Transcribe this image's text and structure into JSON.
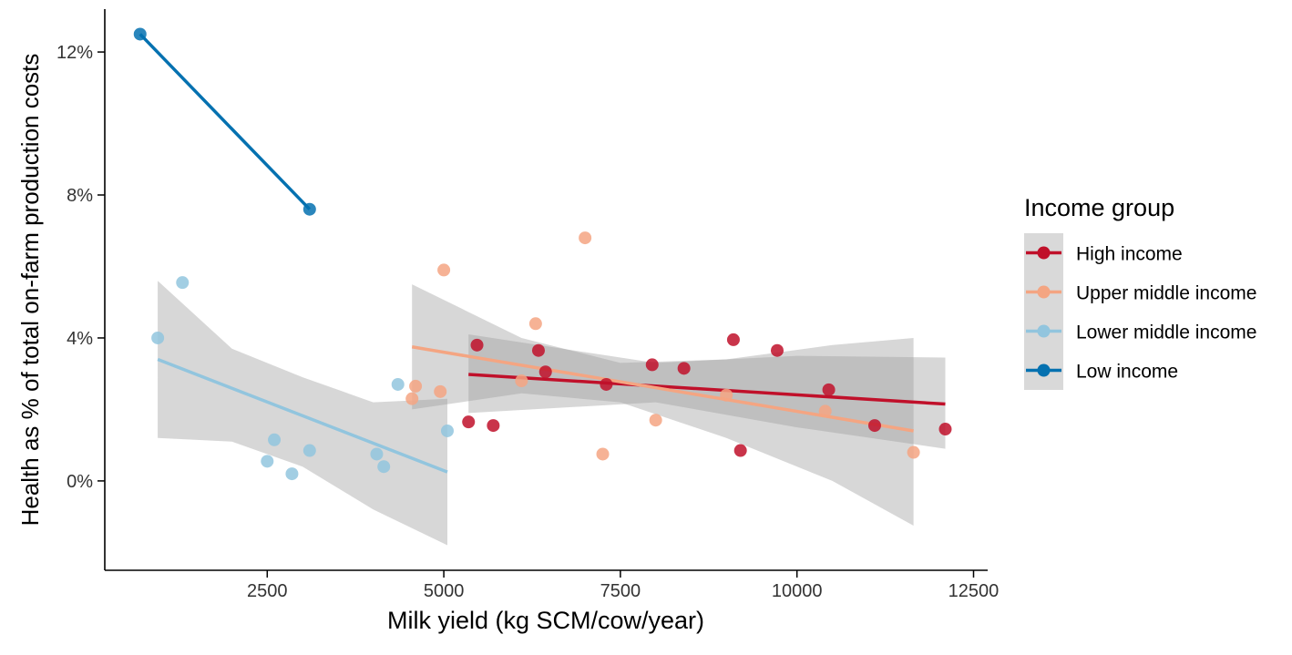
{
  "chart_data": {
    "type": "scatter",
    "xlabel": "Milk yield (kg SCM/cow/year)",
    "ylabel": "Health as % of total on-farm production costs",
    "xlim": [
      200,
      12700
    ],
    "ylim": [
      -2.5,
      13.2
    ],
    "x_ticks": [
      2500,
      5000,
      7500,
      10000,
      12500
    ],
    "x_tick_labels": [
      "2500",
      "5000",
      "7500",
      "10000",
      "12500"
    ],
    "y_ticks": [
      0,
      4,
      8,
      12
    ],
    "y_tick_labels": [
      "0%",
      "4%",
      "8%",
      "12%"
    ],
    "grid": false,
    "legend": {
      "title": "Income group",
      "position": "right",
      "entries": [
        "High income",
        "Upper middle income",
        "Lower middle income",
        "Low income"
      ]
    },
    "series": [
      {
        "name": "High income",
        "color": "#c0102a",
        "points": [
          [
            5350,
            1.65
          ],
          [
            5470,
            3.8
          ],
          [
            5700,
            1.55
          ],
          [
            6340,
            3.65
          ],
          [
            6440,
            3.05
          ],
          [
            7300,
            2.7
          ],
          [
            7950,
            3.25
          ],
          [
            8400,
            3.15
          ],
          [
            9100,
            3.95
          ],
          [
            9200,
            0.85
          ],
          [
            9720,
            3.65
          ],
          [
            10450,
            2.55
          ],
          [
            11100,
            1.55
          ],
          [
            12100,
            1.45
          ]
        ],
        "trend": [
          [
            5350,
            2.98
          ],
          [
            12100,
            2.15
          ]
        ],
        "ci": {
          "x": [
            5350,
            8000,
            10000,
            12100
          ],
          "lower": [
            1.9,
            2.2,
            1.5,
            0.9
          ],
          "upper": [
            4.1,
            3.3,
            3.5,
            3.45
          ]
        }
      },
      {
        "name": "Upper middle income",
        "color": "#f4a582",
        "points": [
          [
            4550,
            2.3
          ],
          [
            4600,
            2.65
          ],
          [
            4950,
            2.5
          ],
          [
            5000,
            5.9
          ],
          [
            6100,
            2.8
          ],
          [
            6300,
            4.4
          ],
          [
            7000,
            6.8
          ],
          [
            7250,
            0.75
          ],
          [
            8000,
            1.7
          ],
          [
            9000,
            2.4
          ],
          [
            10400,
            1.95
          ],
          [
            11650,
            0.8
          ]
        ],
        "trend": [
          [
            4550,
            3.75
          ],
          [
            11650,
            1.4
          ]
        ],
        "ci": {
          "x": [
            4550,
            6100,
            7500,
            9000,
            10500,
            11650
          ],
          "lower": [
            2.0,
            2.45,
            2.2,
            1.2,
            0.0,
            -1.25
          ],
          "upper": [
            5.5,
            4.0,
            3.3,
            3.4,
            3.8,
            4.0
          ]
        }
      },
      {
        "name": "Lower middle income",
        "color": "#92c5de",
        "points": [
          [
            950,
            4.0
          ],
          [
            1300,
            5.55
          ],
          [
            2500,
            0.55
          ],
          [
            2600,
            1.15
          ],
          [
            2850,
            0.2
          ],
          [
            3100,
            0.85
          ],
          [
            4050,
            0.75
          ],
          [
            4150,
            0.4
          ],
          [
            4350,
            2.7
          ],
          [
            5050,
            1.4
          ]
        ],
        "trend": [
          [
            950,
            3.4
          ],
          [
            5050,
            0.25
          ]
        ],
        "ci": {
          "x": [
            950,
            2000,
            3000,
            4000,
            5050
          ],
          "lower": [
            1.2,
            1.1,
            0.4,
            -0.8,
            -1.8
          ],
          "upper": [
            5.6,
            3.7,
            2.9,
            2.2,
            2.3
          ]
        }
      },
      {
        "name": "Low income",
        "color": "#0571b0",
        "points": [
          [
            700,
            12.5
          ],
          [
            3100,
            7.6
          ]
        ],
        "trend": [
          [
            700,
            12.5
          ],
          [
            3100,
            7.6
          ]
        ]
      }
    ]
  }
}
